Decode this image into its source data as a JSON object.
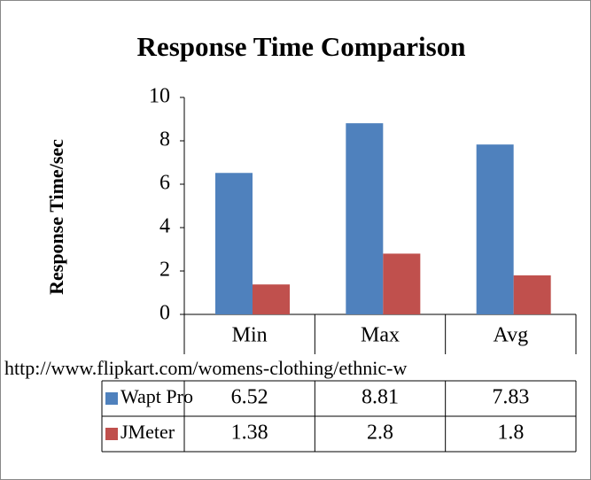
{
  "chart_data": {
    "type": "bar",
    "title": "Response Time Comparison",
    "y_label": "Response Time/sec",
    "x_label": "http://www.flipkart.com/womens-clothing/ethnic-w",
    "categories": [
      "Min",
      "Max",
      "Avg"
    ],
    "series": [
      {
        "name": "Wapt Pro",
        "color": "#4f81bd",
        "values": [
          6.52,
          8.81,
          7.83
        ]
      },
      {
        "name": "JMeter",
        "color": "#c0504d",
        "values": [
          1.38,
          2.8,
          1.8
        ]
      }
    ],
    "ylim": [
      0,
      10
    ],
    "yticks": [
      0,
      2,
      4,
      6,
      8,
      10
    ],
    "grid": false,
    "data_table": true
  }
}
